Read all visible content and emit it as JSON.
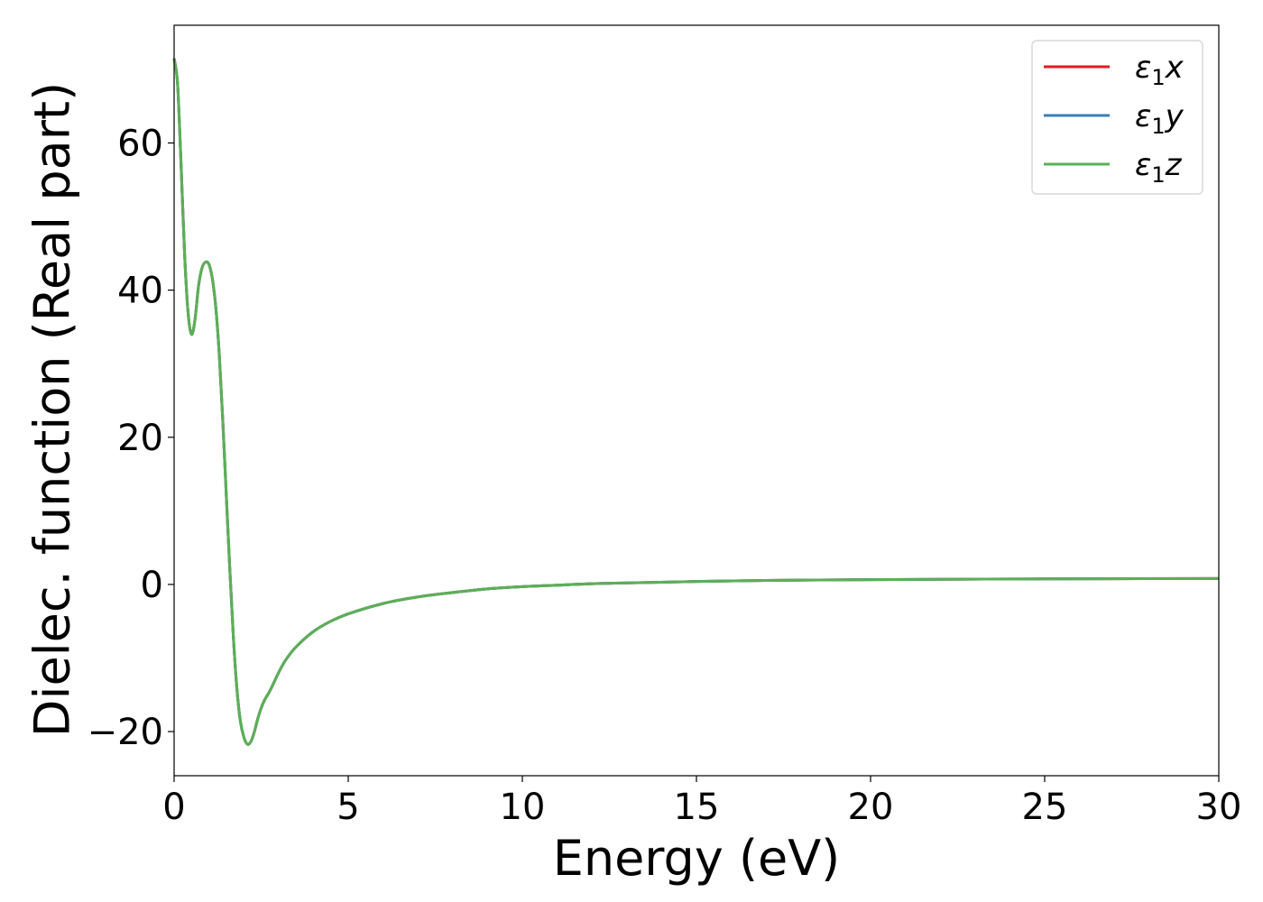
{
  "chart_data": {
    "type": "line",
    "xlabel": "Energy (eV)",
    "ylabel": "Dielec. function (Real part)",
    "xlim": [
      0,
      30
    ],
    "ylim": [
      -26,
      76
    ],
    "xticks": [
      0,
      5,
      10,
      15,
      20,
      25,
      30
    ],
    "yticks": [
      -20,
      0,
      20,
      40,
      60
    ],
    "xtick_labels": [
      "0",
      "5",
      "10",
      "15",
      "20",
      "25",
      "30"
    ],
    "ytick_labels": [
      "−20",
      "0",
      "20",
      "40",
      "60"
    ],
    "grid": false,
    "legend": "top-right",
    "x": [
      0,
      0.1,
      0.2,
      0.3,
      0.4,
      0.5,
      0.6,
      0.7,
      0.8,
      0.9,
      1.0,
      1.1,
      1.2,
      1.3,
      1.4,
      1.5,
      1.6,
      1.7,
      1.8,
      1.9,
      2.0,
      2.1,
      2.2,
      2.3,
      2.4,
      2.5,
      2.6,
      2.7,
      2.8,
      3.0,
      3.2,
      3.5,
      4.0,
      4.5,
      5.0,
      6.0,
      7.0,
      8.0,
      9.0,
      10.0,
      11.0,
      12.0,
      13.0,
      15.0,
      17.0,
      20.0,
      25.0,
      30.0
    ],
    "series": [
      {
        "name": "ε₁x",
        "label_base": "ε",
        "label_sub": "1",
        "label_var": "x",
        "color": "#e41a1c",
        "values": [
          71.5,
          68.0,
          57.0,
          45.0,
          37.0,
          34.0,
          36.0,
          40.5,
          43.0,
          43.8,
          43.5,
          41.5,
          37.5,
          31.0,
          22.0,
          12.0,
          2.0,
          -7.0,
          -14.0,
          -18.5,
          -20.7,
          -21.7,
          -21.4,
          -20.1,
          -18.3,
          -16.8,
          -15.7,
          -14.9,
          -14.0,
          -12.0,
          -10.3,
          -8.5,
          -6.4,
          -5.0,
          -4.0,
          -2.6,
          -1.7,
          -1.1,
          -0.6,
          -0.3,
          -0.1,
          0.1,
          0.2,
          0.4,
          0.55,
          0.65,
          0.75,
          0.8
        ]
      },
      {
        "name": "ε₁y",
        "label_base": "ε",
        "label_sub": "1",
        "label_var": "y",
        "color": "#377eb8",
        "values": [
          71.5,
          68.0,
          57.0,
          45.0,
          37.0,
          34.0,
          36.0,
          40.5,
          43.0,
          43.8,
          43.5,
          41.5,
          37.5,
          31.0,
          22.0,
          12.0,
          2.0,
          -7.0,
          -14.0,
          -18.5,
          -20.7,
          -21.7,
          -21.4,
          -20.1,
          -18.3,
          -16.8,
          -15.7,
          -14.9,
          -14.0,
          -12.0,
          -10.3,
          -8.5,
          -6.4,
          -5.0,
          -4.0,
          -2.6,
          -1.7,
          -1.1,
          -0.6,
          -0.3,
          -0.1,
          0.1,
          0.2,
          0.4,
          0.55,
          0.65,
          0.75,
          0.8
        ]
      },
      {
        "name": "ε₁z",
        "label_base": "ε",
        "label_sub": "1",
        "label_var": "z",
        "color": "#5bb056",
        "values": [
          71.5,
          68.0,
          57.0,
          45.0,
          37.0,
          34.0,
          36.0,
          40.5,
          43.0,
          43.8,
          43.5,
          41.5,
          37.5,
          31.0,
          22.0,
          12.0,
          2.0,
          -7.0,
          -14.0,
          -18.5,
          -20.7,
          -21.7,
          -21.4,
          -20.1,
          -18.3,
          -16.8,
          -15.7,
          -14.9,
          -14.0,
          -12.0,
          -10.3,
          -8.5,
          -6.4,
          -5.0,
          -4.0,
          -2.6,
          -1.7,
          -1.1,
          -0.6,
          -0.3,
          -0.1,
          0.1,
          0.2,
          0.4,
          0.55,
          0.65,
          0.75,
          0.8
        ]
      }
    ]
  }
}
